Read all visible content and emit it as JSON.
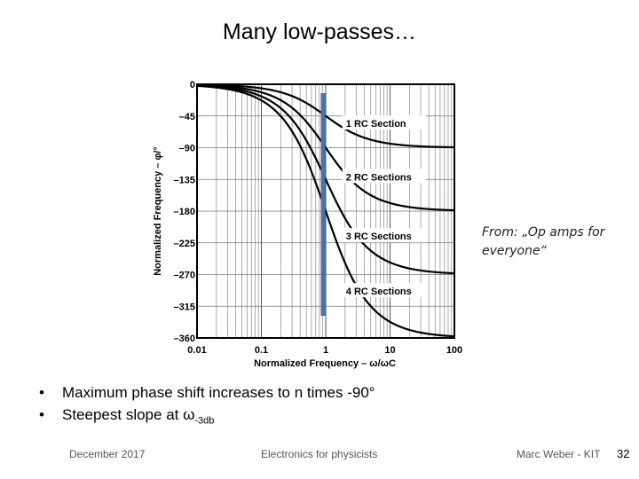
{
  "slide": {
    "title": "Many low-passes…",
    "source_note": "From: „Op amps for everyone“",
    "bullets": [
      {
        "prefix": "Maximum phase shift increases to n times -90°",
        "sub": ""
      },
      {
        "prefix": "Steepest slope at ω",
        "sub": "-3db"
      }
    ],
    "footer": {
      "date": "December 2017",
      "course": "Electronics for physicists",
      "author": "Marc Weber - KIT",
      "page": "32"
    }
  },
  "chart_data": {
    "type": "line",
    "xlabel": "Normalized Frequency – ω/ωC",
    "ylabel": "Normalized Frequency – φ/°",
    "x_scale": "log",
    "xlim": [
      0.01,
      100
    ],
    "ylim": [
      -360,
      0
    ],
    "x_ticks": [
      0.01,
      0.1,
      1,
      10,
      100
    ],
    "x_tick_labels": [
      "0.01",
      "0.1",
      "1",
      "10",
      "100"
    ],
    "y_ticks": [
      0,
      -45,
      -90,
      -135,
      -180,
      -225,
      -270,
      -315,
      -360
    ],
    "y_tick_labels": [
      "0",
      "–45",
      "–90",
      "–135",
      "–180",
      "–225",
      "–270",
      "–315",
      "–360"
    ],
    "grid": true,
    "series": [
      {
        "name": "1 RC Section",
        "n": 1
      },
      {
        "name": "2 RC Sections",
        "n": 2
      },
      {
        "name": "3 RC Sections",
        "n": 3
      },
      {
        "name": "4 RC Sections",
        "n": 4
      }
    ],
    "marker_line": {
      "x": 1,
      "color": "#4a72b0"
    },
    "line_color": "#000000"
  }
}
